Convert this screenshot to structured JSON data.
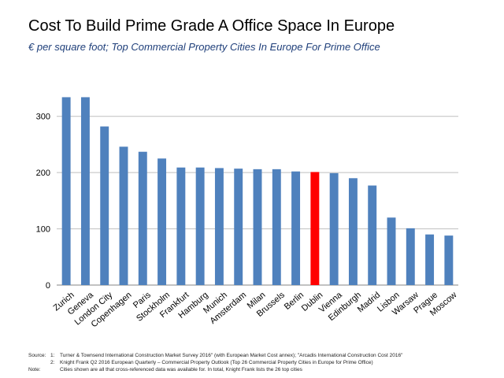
{
  "header": {
    "title": "Cost To Build Prime Grade A Office Space In Europe",
    "subtitle": "€ per square foot; Top Commercial Property Cities In Europe For Prime Office"
  },
  "chart_data": {
    "type": "bar",
    "categories": [
      "Zurich",
      "Geneva",
      "London City",
      "Copenhagen",
      "Paris",
      "Stockholm",
      "Frankfurt",
      "Hamburg",
      "Munich",
      "Amsterdam",
      "Milan",
      "Brussels",
      "Berlin",
      "Dublin",
      "Vienna",
      "Edinburgh",
      "Madrid",
      "Lisbon",
      "Warsaw",
      "Prague",
      "Moscow"
    ],
    "values": [
      334,
      334,
      282,
      246,
      237,
      225,
      209,
      209,
      208,
      207,
      206,
      206,
      202,
      201,
      199,
      190,
      177,
      120,
      101,
      90,
      88
    ],
    "highlight_index": 13,
    "bar_color": "#4f81bd",
    "highlight_color": "#ff0000",
    "ylim": [
      0,
      350
    ],
    "yticks": [
      0,
      100,
      200,
      300
    ],
    "grid": true,
    "xlabel": "",
    "ylabel": ""
  },
  "notes": {
    "source_label": "Source:",
    "source_1_num": "1:",
    "source_1_text": "Turner & Townsend International Construction Market Survey 2016\" (with European Market Cost annex); \"Arcadis International Construction Cost 2016\"",
    "source_2_num": "2:",
    "source_2_text": "Knight Frank Q2 2016 European Quarterly – Commercial Property Outlook (Top 26 Commercial Property Cities in Europe for Prime Office)",
    "note_label": "Note:",
    "note_text": "Cities shown are all that cross-referenced data was available for. In total, Knight Frank lists the 26 top cities"
  }
}
